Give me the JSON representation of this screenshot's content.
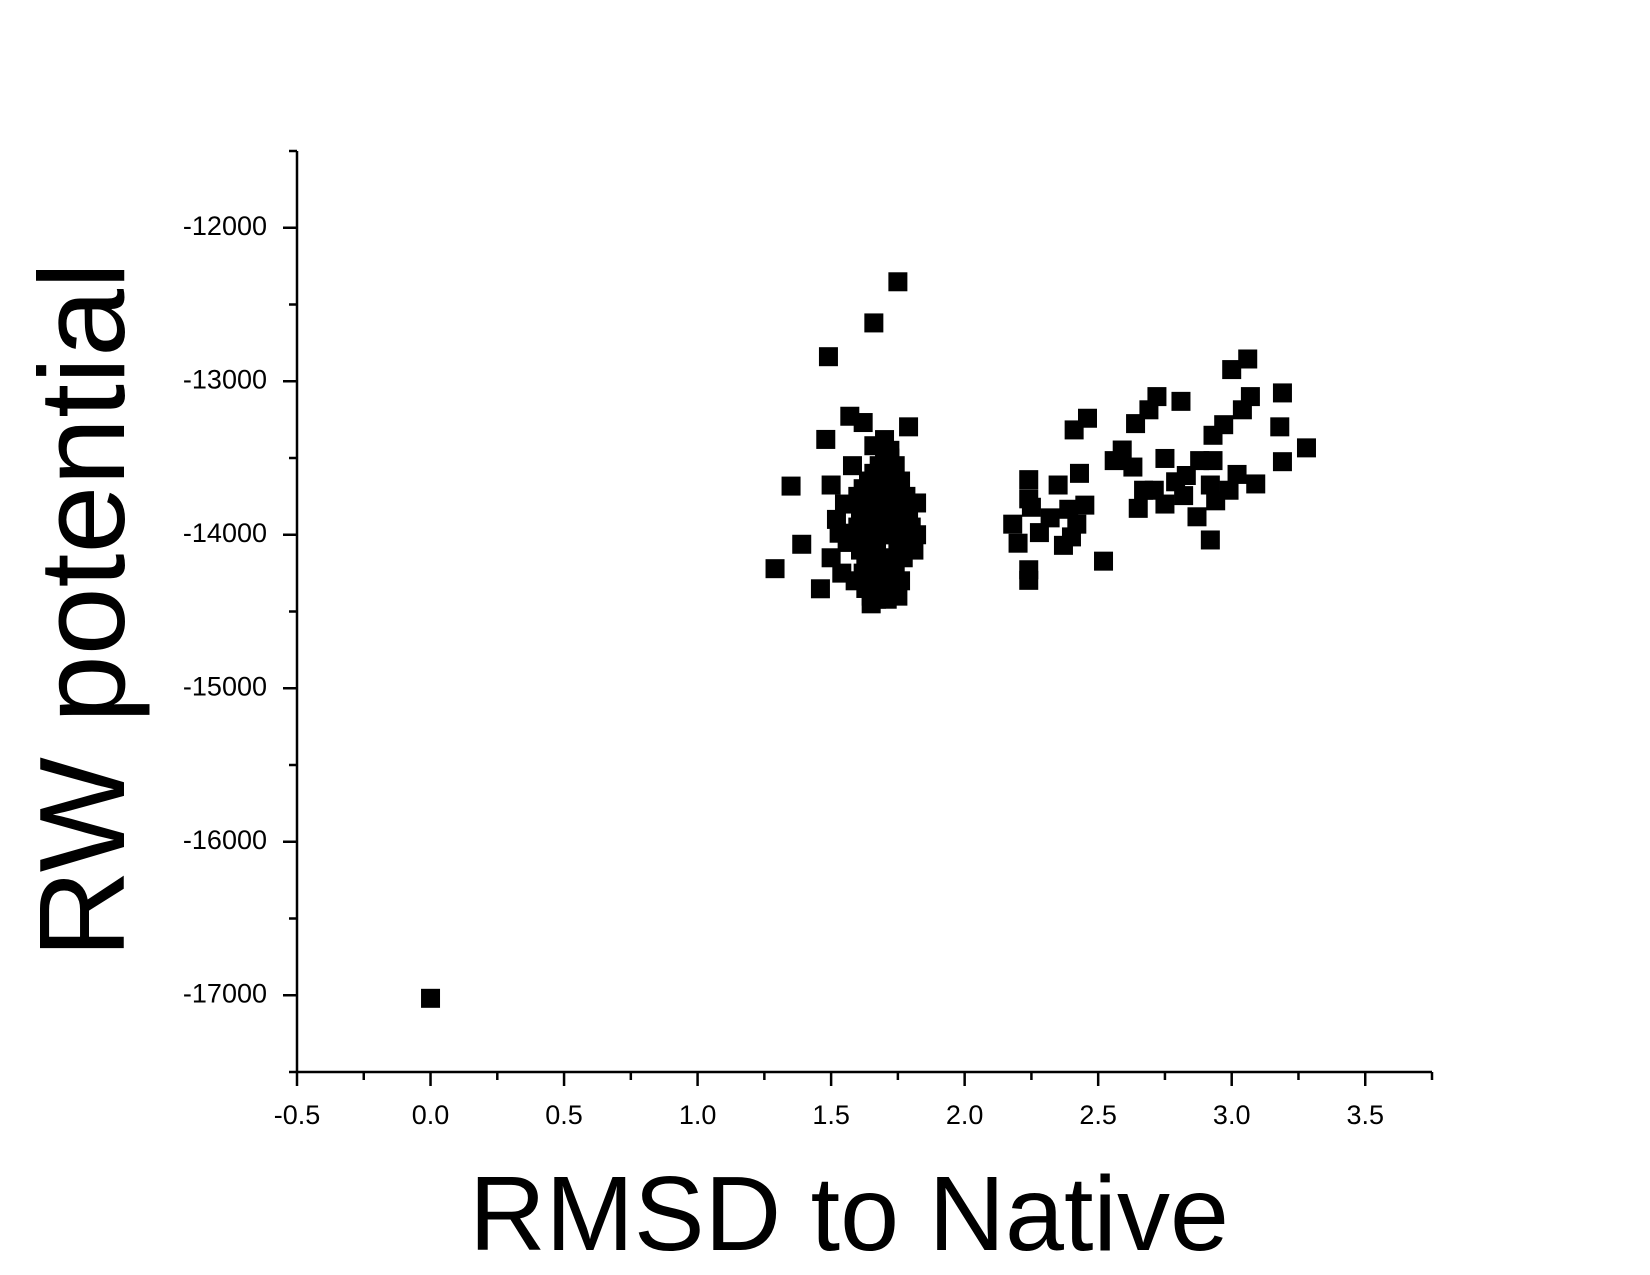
{
  "chart_data": {
    "type": "scatter",
    "x_label": "RMSD to Native",
    "y_label": "RW potential",
    "color": "#000000",
    "marker": "square",
    "xlim": [
      -0.5,
      3.75
    ],
    "ylim": [
      -17500,
      -11500
    ],
    "xticks": [
      {
        "value": -0.5,
        "label": "-0.5"
      },
      {
        "value": 0,
        "label": "0.0"
      },
      {
        "value": 0.5,
        "label": "0.5"
      },
      {
        "value": 1,
        "label": "1.0"
      },
      {
        "value": 1.5,
        "label": "1.5"
      },
      {
        "value": 2,
        "label": "2.0"
      },
      {
        "value": 2.5,
        "label": "2.5"
      },
      {
        "value": 3,
        "label": "3.0"
      },
      {
        "value": 3.5,
        "label": "3.5"
      }
    ],
    "yticks": [
      -12000,
      -13000,
      -14000,
      -15000,
      -16000,
      -17000
    ],
    "x_minor_ticks": [
      -0.25,
      0.25,
      0.75,
      1.25,
      1.75,
      2.25,
      2.75,
      3.25,
      3.75
    ],
    "y_minor_ticks": [
      -11500,
      -12500,
      -13500,
      -14500,
      -15500,
      -16500,
      -17500
    ],
    "x": [
      0.0,
      1.75,
      1.66,
      1.49,
      3.06,
      3.0,
      3.19,
      3.07,
      2.72,
      2.81,
      2.69,
      3.04,
      1.57,
      2.46,
      2.97,
      2.64,
      3.18,
      2.41,
      1.79,
      1.62,
      1.48,
      2.93,
      3.28,
      2.59,
      2.75,
      2.56,
      2.63,
      3.19,
      2.93,
      2.88,
      2.43,
      2.24,
      2.83,
      3.02,
      3.09,
      2.79,
      2.92,
      1.35,
      1.5,
      2.35,
      2.67,
      2.71,
      2.99,
      2.82,
      2.24,
      2.94,
      2.75,
      1.82,
      2.45,
      2.65,
      2.25,
      2.39,
      2.87,
      2.32,
      2.18,
      2.42,
      2.28,
      2.4,
      2.2,
      2.37,
      2.92,
      1.39,
      2.52,
      1.29,
      2.24,
      2.24,
      1.46,
      1.6,
      1.62,
      1.64,
      1.66,
      1.68,
      1.7,
      1.72,
      1.74,
      1.76,
      1.78,
      1.61,
      1.63,
      1.65,
      1.67,
      1.69,
      1.71,
      1.73,
      1.75,
      1.77,
      1.79,
      1.6,
      1.62,
      1.64,
      1.66,
      1.68,
      1.7,
      1.72,
      1.74,
      1.76,
      1.78,
      1.61,
      1.63,
      1.65,
      1.67,
      1.69,
      1.71,
      1.73,
      1.75,
      1.77,
      1.62,
      1.64,
      1.66,
      1.68,
      1.7,
      1.72,
      1.74,
      1.76,
      1.63,
      1.65,
      1.67,
      1.69,
      1.71,
      1.73,
      1.75,
      1.65,
      1.67,
      1.69,
      1.71,
      1.73,
      1.66,
      1.7,
      1.72,
      1.58,
      1.55,
      1.52,
      1.56,
      1.5,
      1.54,
      1.8,
      1.81,
      1.82,
      1.59,
      1.53
    ],
    "values": [
      -17020,
      -12352,
      -12620,
      -12840,
      -12855,
      -12924,
      -13076,
      -13100,
      -13100,
      -13131,
      -13186,
      -13186,
      -13228,
      -13241,
      -13283,
      -13276,
      -13297,
      -13317,
      -13297,
      -13269,
      -13379,
      -13352,
      -13434,
      -13448,
      -13503,
      -13517,
      -13559,
      -13524,
      -13517,
      -13517,
      -13600,
      -13641,
      -13614,
      -13607,
      -13669,
      -13655,
      -13676,
      -13683,
      -13676,
      -13676,
      -13710,
      -13710,
      -13710,
      -13745,
      -13766,
      -13779,
      -13800,
      -13793,
      -13807,
      -13828,
      -13821,
      -13834,
      -13883,
      -13890,
      -13931,
      -13931,
      -13986,
      -14014,
      -14055,
      -14069,
      -14034,
      -14062,
      -14172,
      -14221,
      -14228,
      -14297,
      -14352,
      -13750,
      -13700,
      -13650,
      -13600,
      -13550,
      -13500,
      -13450,
      -13550,
      -13650,
      -13750,
      -13850,
      -13850,
      -13800,
      -13750,
      -13700,
      -13650,
      -13700,
      -13800,
      -13850,
      -13900,
      -13950,
      -14000,
      -13950,
      -13900,
      -13850,
      -13800,
      -13850,
      -13950,
      -14000,
      -14050,
      -14100,
      -14150,
      -14100,
      -14050,
      -14000,
      -13950,
      -14000,
      -14100,
      -14150,
      -14250,
      -14300,
      -14250,
      -14200,
      -14150,
      -14200,
      -14250,
      -14300,
      -14350,
      -14400,
      -14380,
      -14350,
      -14300,
      -14350,
      -14400,
      -14450,
      -14420,
      -14400,
      -14420,
      -14380,
      -13420,
      -13380,
      -13500,
      -13550,
      -13800,
      -13900,
      -14050,
      -14150,
      -14250,
      -13950,
      -14100,
      -14000,
      -14300,
      -13990
    ]
  }
}
